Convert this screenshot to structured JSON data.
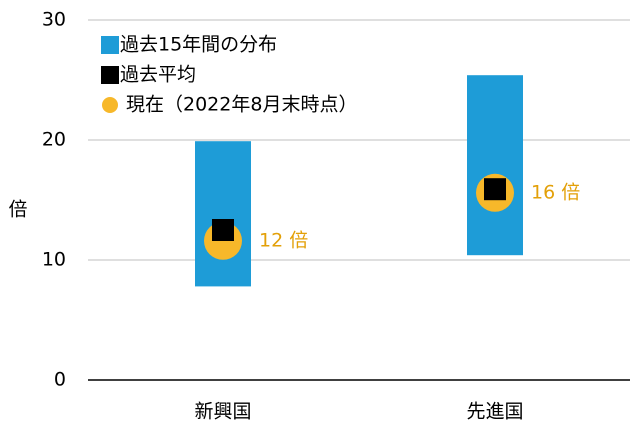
{
  "chart_data": {
    "type": "range",
    "categories": [
      "新興国",
      "先進国"
    ],
    "y_label": "倍",
    "ylim": [
      0,
      30
    ],
    "yticks": [
      0,
      10,
      20,
      30
    ],
    "grid": true,
    "series": [
      {
        "name": "過去15年間の分布",
        "color": "#1e9cd7",
        "values": [
          [
            7.8,
            19.9
          ],
          [
            10.4,
            25.4
          ]
        ]
      },
      {
        "name": "過去平均",
        "color": "#000000",
        "values": [
          12.5,
          15.9
        ]
      },
      {
        "name": "現在（2022年8月末時点）",
        "color": "#f7b82a",
        "values": [
          11.6,
          15.6
        ],
        "value_labels": [
          "12 倍",
          "16 倍"
        ],
        "label_color": "#e3a008"
      }
    ],
    "legend": "upper left"
  }
}
